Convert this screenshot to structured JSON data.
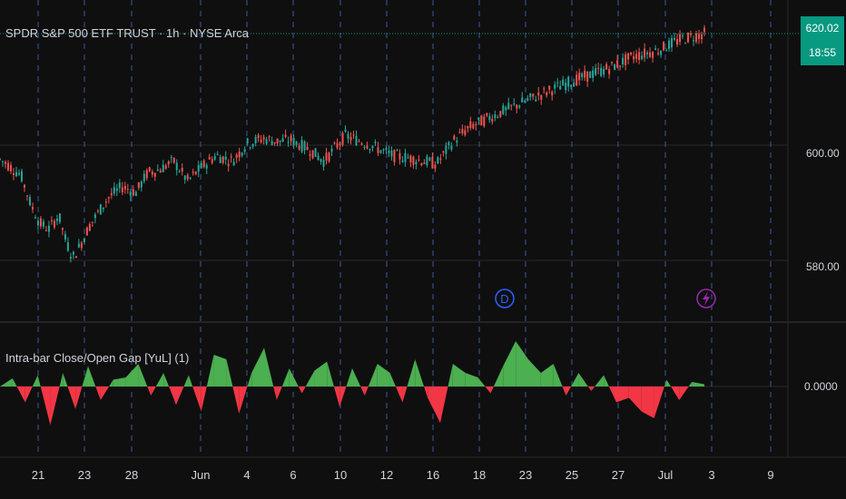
{
  "chart_data": [
    {
      "type": "candlestick",
      "title": "SPDR S&P 500 ETF TRUST · 1h · NYSE Arca",
      "symbol": "SPDR S&P 500 ETF TRUST",
      "interval": "1h",
      "exchange": "NYSE Arca",
      "price_axis": {
        "ticks": [
          580.0,
          600.0
        ],
        "tick_labels": [
          "580.00",
          "600.00"
        ],
        "ylim": [
          572.5,
          625.3
        ]
      },
      "last_price": "620.02",
      "countdown": "18:55",
      "x_ticks": [
        "21",
        "23",
        "28",
        "Jun",
        "4",
        "6",
        "10",
        "12",
        "16",
        "18",
        "23",
        "25",
        "27",
        "Jul",
        "3",
        "9"
      ],
      "path": [
        [
          0,
          597.8
        ],
        [
          0.03,
          597.0
        ],
        [
          0.09,
          595.0
        ],
        [
          0.13,
          590.0
        ],
        [
          0.17,
          586.5
        ],
        [
          0.21,
          585.5
        ],
        [
          0.25,
          588.0
        ],
        [
          0.28,
          583.5
        ],
        [
          0.31,
          580.5
        ],
        [
          0.34,
          582.5
        ],
        [
          0.38,
          586.0
        ],
        [
          0.46,
          591.0
        ],
        [
          0.52,
          593.0
        ],
        [
          0.58,
          592.0
        ],
        [
          0.63,
          595.5
        ],
        [
          0.68,
          596.0
        ],
        [
          0.74,
          597.5
        ],
        [
          0.8,
          594.0
        ],
        [
          0.86,
          596.5
        ],
        [
          0.92,
          598.5
        ],
        [
          0.99,
          597.5
        ],
        [
          1.05,
          600.5
        ],
        [
          1.12,
          601.5
        ],
        [
          1.18,
          601.0
        ],
        [
          1.24,
          601.2
        ],
        [
          1.32,
          599.5
        ],
        [
          1.38,
          597.5
        ],
        [
          1.47,
          602.0
        ],
        [
          1.57,
          600.5
        ],
        [
          1.67,
          598.5
        ],
        [
          1.75,
          598.0
        ],
        [
          1.86,
          597.0
        ],
        [
          1.93,
          601.0
        ],
        [
          2.0,
          603.5
        ],
        [
          2.1,
          605.5
        ],
        [
          2.26,
          608.5
        ],
        [
          2.43,
          611.5
        ],
        [
          2.6,
          614.0
        ],
        [
          2.7,
          616.0
        ],
        [
          2.8,
          617.0
        ],
        [
          2.9,
          619.0
        ],
        [
          3.0,
          620.0
        ]
      ],
      "candle_colors": {
        "up": "#26a69a",
        "down": "#ef5350"
      }
    },
    {
      "type": "area",
      "title": "Intra-bar Close/Open Gap [YuL] (1)",
      "y_ticks": [
        "0.0000"
      ],
      "baseline": 0,
      "ylim": [
        -1,
        1
      ],
      "values": [
        0.0,
        0.18,
        -0.35,
        0.25,
        -0.85,
        0.3,
        -0.5,
        0.45,
        -0.3,
        0.15,
        0.2,
        0.5,
        -0.2,
        0.3,
        -0.4,
        0.25,
        -0.55,
        0.7,
        0.6,
        -0.6,
        0.3,
        0.85,
        -0.3,
        0.4,
        -0.15,
        0.35,
        0.55,
        -0.45,
        0.4,
        -0.2,
        0.5,
        0.3,
        -0.35,
        0.6,
        -0.25,
        -0.8,
        0.5,
        0.3,
        0.2,
        -0.15,
        0.45,
        1.0,
        0.6,
        0.3,
        0.5,
        -0.2,
        0.3,
        -0.1,
        0.25,
        -0.35,
        -0.25,
        -0.55,
        -0.7,
        0.15,
        -0.3,
        0.1,
        0.05
      ],
      "colors": {
        "positive": "#4caf50",
        "negative": "#f23645"
      }
    }
  ],
  "markers": {
    "dividend": {
      "label": "D",
      "color": "#2962ff"
    },
    "earnings": {
      "icon": "lightning-icon",
      "color": "#9c27b0"
    }
  },
  "colors": {
    "background": "#0f0f0f",
    "grid_dashed": "#3d5a9e",
    "last_price_line": "#089981"
  }
}
